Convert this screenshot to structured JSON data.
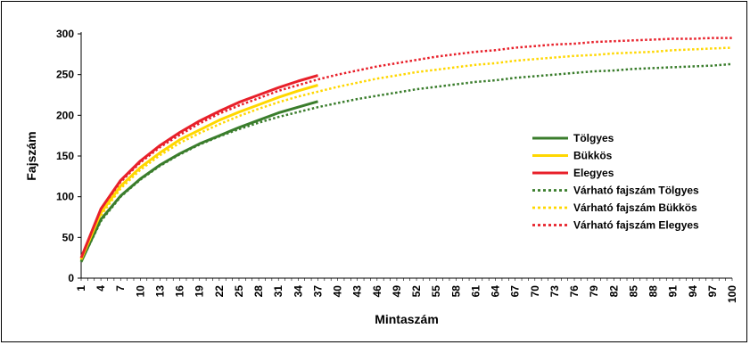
{
  "chart_data": {
    "type": "line",
    "xlabel": "Mintaszám",
    "ylabel": "Fajszám",
    "ylim": [
      0,
      300
    ],
    "xlim": [
      1,
      100
    ],
    "x_tick_labels": [
      "1",
      "4",
      "7",
      "10",
      "13",
      "16",
      "19",
      "22",
      "25",
      "28",
      "31",
      "34",
      "37",
      "40",
      "43",
      "46",
      "49",
      "52",
      "55",
      "58",
      "61",
      "64",
      "67",
      "70",
      "73",
      "76",
      "79",
      "82",
      "85",
      "88",
      "91",
      "94",
      "97",
      "100"
    ],
    "y_tick_labels": [
      "0",
      "50",
      "100",
      "150",
      "200",
      "250",
      "300"
    ],
    "grid": false,
    "legend_position": "right",
    "series": [
      {
        "name": "Tölgyes",
        "style": "solid",
        "color": "#3a7d2c",
        "x": [
          1,
          4,
          7,
          10,
          13,
          16,
          19,
          22,
          25,
          28,
          31,
          34,
          37
        ],
        "values": [
          20,
          72,
          101,
          122,
          139,
          153,
          165,
          175,
          185,
          194,
          203,
          210,
          217
        ]
      },
      {
        "name": "Bükkös",
        "style": "solid",
        "color": "#ffd700",
        "x": [
          1,
          4,
          7,
          10,
          13,
          16,
          19,
          22,
          25,
          28,
          31,
          34,
          37
        ],
        "values": [
          23,
          80,
          113,
          136,
          154,
          170,
          182,
          194,
          204,
          213,
          222,
          230,
          237
        ]
      },
      {
        "name": "Elegyes",
        "style": "solid",
        "color": "#e8202a",
        "x": [
          1,
          4,
          7,
          10,
          13,
          16,
          19,
          22,
          25,
          28,
          31,
          34,
          37
        ],
        "values": [
          25,
          85,
          120,
          144,
          163,
          179,
          193,
          205,
          216,
          225,
          234,
          242,
          249
        ]
      },
      {
        "name": "Várható fajszám Tölgyes",
        "style": "dotted",
        "color": "#3a7d2c",
        "x": [
          1,
          4,
          7,
          10,
          13,
          16,
          19,
          22,
          25,
          28,
          31,
          34,
          37,
          40,
          43,
          46,
          49,
          52,
          55,
          58,
          61,
          64,
          67,
          70,
          73,
          76,
          79,
          82,
          85,
          88,
          91,
          94,
          97,
          100
        ],
        "values": [
          20,
          70,
          100,
          121,
          138,
          152,
          164,
          174,
          183,
          191,
          198,
          204,
          210,
          215,
          220,
          224,
          228,
          232,
          235,
          238,
          241,
          243,
          246,
          248,
          250,
          252,
          254,
          255,
          257,
          258,
          259,
          260,
          261,
          263
        ]
      },
      {
        "name": "Várható fajszám Bükkös",
        "style": "dotted",
        "color": "#ffd700",
        "x": [
          1,
          4,
          7,
          10,
          13,
          16,
          19,
          22,
          25,
          28,
          31,
          34,
          37,
          40,
          43,
          46,
          49,
          52,
          55,
          58,
          61,
          64,
          67,
          70,
          73,
          76,
          79,
          82,
          85,
          88,
          91,
          94,
          97,
          100
        ],
        "values": [
          22,
          77,
          110,
          133,
          151,
          166,
          178,
          189,
          199,
          208,
          216,
          223,
          229,
          235,
          240,
          245,
          249,
          253,
          256,
          259,
          262,
          264,
          267,
          269,
          271,
          273,
          274,
          276,
          277,
          278,
          280,
          281,
          282,
          283
        ]
      },
      {
        "name": "Várható fajszám Elegyes",
        "style": "dotted",
        "color": "#e8202a",
        "x": [
          1,
          4,
          7,
          10,
          13,
          16,
          19,
          22,
          25,
          28,
          31,
          34,
          37,
          40,
          43,
          46,
          49,
          52,
          55,
          58,
          61,
          64,
          67,
          70,
          73,
          76,
          79,
          82,
          85,
          88,
          91,
          94,
          97,
          100
        ],
        "values": [
          24,
          83,
          118,
          142,
          161,
          176,
          190,
          202,
          212,
          221,
          230,
          237,
          244,
          250,
          255,
          260,
          264,
          268,
          272,
          275,
          278,
          280,
          283,
          285,
          287,
          288,
          290,
          291,
          292,
          293,
          294,
          294,
          295,
          295
        ]
      }
    ]
  }
}
